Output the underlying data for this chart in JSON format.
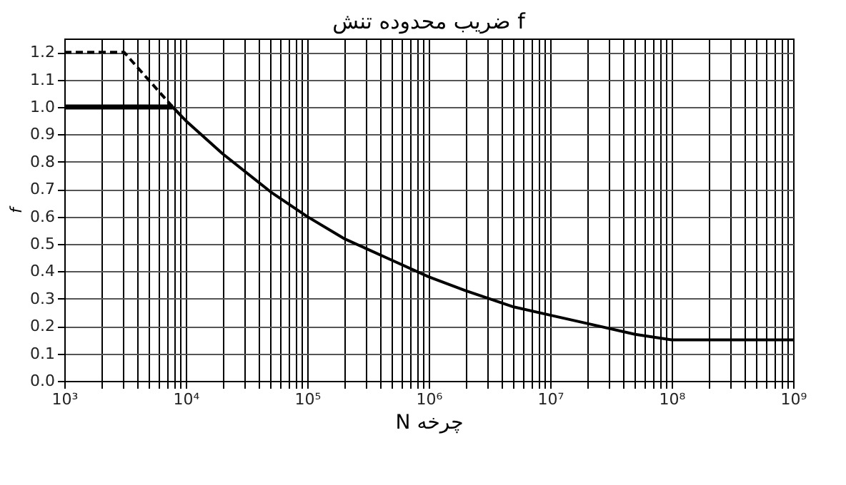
{
  "chart_data": {
    "type": "line",
    "title": "ضریب محدوده تنش f",
    "xlabel": "N چرخه",
    "ylabel": "f",
    "log": "x",
    "grid": true,
    "marker": "none",
    "xlim": [
      1000,
      1000000000
    ],
    "ylim": [
      0,
      1.25
    ],
    "xticks": [
      {
        "value": 1000,
        "label": "10³"
      },
      {
        "value": 2000,
        "label": null
      },
      {
        "value": 3000,
        "label": null
      },
      {
        "value": 4000,
        "label": null
      },
      {
        "value": 5000,
        "label": null
      },
      {
        "value": 6000,
        "label": null
      },
      {
        "value": 7000,
        "label": null
      },
      {
        "value": 8000,
        "label": null
      },
      {
        "value": 9000,
        "label": null
      },
      {
        "value": 10000,
        "label": "10⁴"
      },
      {
        "value": 20000,
        "label": null
      },
      {
        "value": 30000,
        "label": null
      },
      {
        "value": 40000,
        "label": null
      },
      {
        "value": 50000,
        "label": null
      },
      {
        "value": 60000,
        "label": null
      },
      {
        "value": 70000,
        "label": null
      },
      {
        "value": 80000,
        "label": null
      },
      {
        "value": 90000,
        "label": null
      },
      {
        "value": 100000,
        "label": "10⁵"
      },
      {
        "value": 200000,
        "label": null
      },
      {
        "value": 300000,
        "label": null
      },
      {
        "value": 400000,
        "label": null
      },
      {
        "value": 500000,
        "label": null
      },
      {
        "value": 600000,
        "label": null
      },
      {
        "value": 700000,
        "label": null
      },
      {
        "value": 800000,
        "label": null
      },
      {
        "value": 900000,
        "label": null
      },
      {
        "value": 1000000,
        "label": "10⁶"
      },
      {
        "value": 2000000,
        "label": null
      },
      {
        "value": 3000000,
        "label": null
      },
      {
        "value": 4000000,
        "label": null
      },
      {
        "value": 5000000,
        "label": null
      },
      {
        "value": 6000000,
        "label": null
      },
      {
        "value": 7000000,
        "label": null
      },
      {
        "value": 8000000,
        "label": null
      },
      {
        "value": 9000000,
        "label": null
      },
      {
        "value": 10000000,
        "label": "10⁷"
      },
      {
        "value": 20000000,
        "label": null
      },
      {
        "value": 30000000,
        "label": null
      },
      {
        "value": 40000000,
        "label": null
      },
      {
        "value": 50000000,
        "label": null
      },
      {
        "value": 60000000,
        "label": null
      },
      {
        "value": 70000000,
        "label": null
      },
      {
        "value": 80000000,
        "label": null
      },
      {
        "value": 90000000,
        "label": null
      },
      {
        "value": 100000000,
        "label": "10⁸"
      },
      {
        "value": 200000000,
        "label": null
      },
      {
        "value": 300000000,
        "label": null
      },
      {
        "value": 400000000,
        "label": null
      },
      {
        "value": 500000000,
        "label": null
      },
      {
        "value": 600000000,
        "label": null
      },
      {
        "value": 700000000,
        "label": null
      },
      {
        "value": 800000000,
        "label": null
      },
      {
        "value": 900000000,
        "label": null
      },
      {
        "value": 1000000000,
        "label": "10⁹"
      }
    ],
    "yticks": [
      {
        "value": 0,
        "label": "0.0"
      },
      {
        "value": 0.1,
        "label": "0.1"
      },
      {
        "value": 0.2,
        "label": "0.2"
      },
      {
        "value": 0.3,
        "label": "0.3"
      },
      {
        "value": 0.4,
        "label": "0.4"
      },
      {
        "value": 0.5,
        "label": "0.5"
      },
      {
        "value": 0.6,
        "label": "0.6"
      },
      {
        "value": 0.7,
        "label": "0.7"
      },
      {
        "value": 0.8,
        "label": "0.8"
      },
      {
        "value": 0.9,
        "label": "0.9"
      },
      {
        "value": 1.0,
        "label": "1.0"
      },
      {
        "value": 1.1,
        "label": "1.1"
      },
      {
        "value": 1.2,
        "label": "1.2"
      }
    ],
    "series": [
      {
        "color": "#000000",
        "line_style": "dashed",
        "x": [
          1000,
          3100,
          7800
        ],
        "values": [
          1.2,
          1.2,
          1.0
        ]
      },
      {
        "color": "#000000",
        "line_style": "solid",
        "x": [
          1000,
          7800
        ],
        "values": [
          1.0,
          1.0
        ]
      },
      {
        "color": "#000000",
        "line_style": "solid",
        "x": [
          7800,
          10000,
          20000,
          50000,
          100000,
          200000,
          500000,
          1000000,
          2000000,
          5000000,
          10000000,
          20000000,
          50000000,
          100000000,
          1000000000
        ],
        "values": [
          1.0,
          0.95,
          0.83,
          0.69,
          0.6,
          0.52,
          0.44,
          0.38,
          0.33,
          0.27,
          0.24,
          0.21,
          0.17,
          0.15,
          0.15
        ]
      }
    ]
  }
}
